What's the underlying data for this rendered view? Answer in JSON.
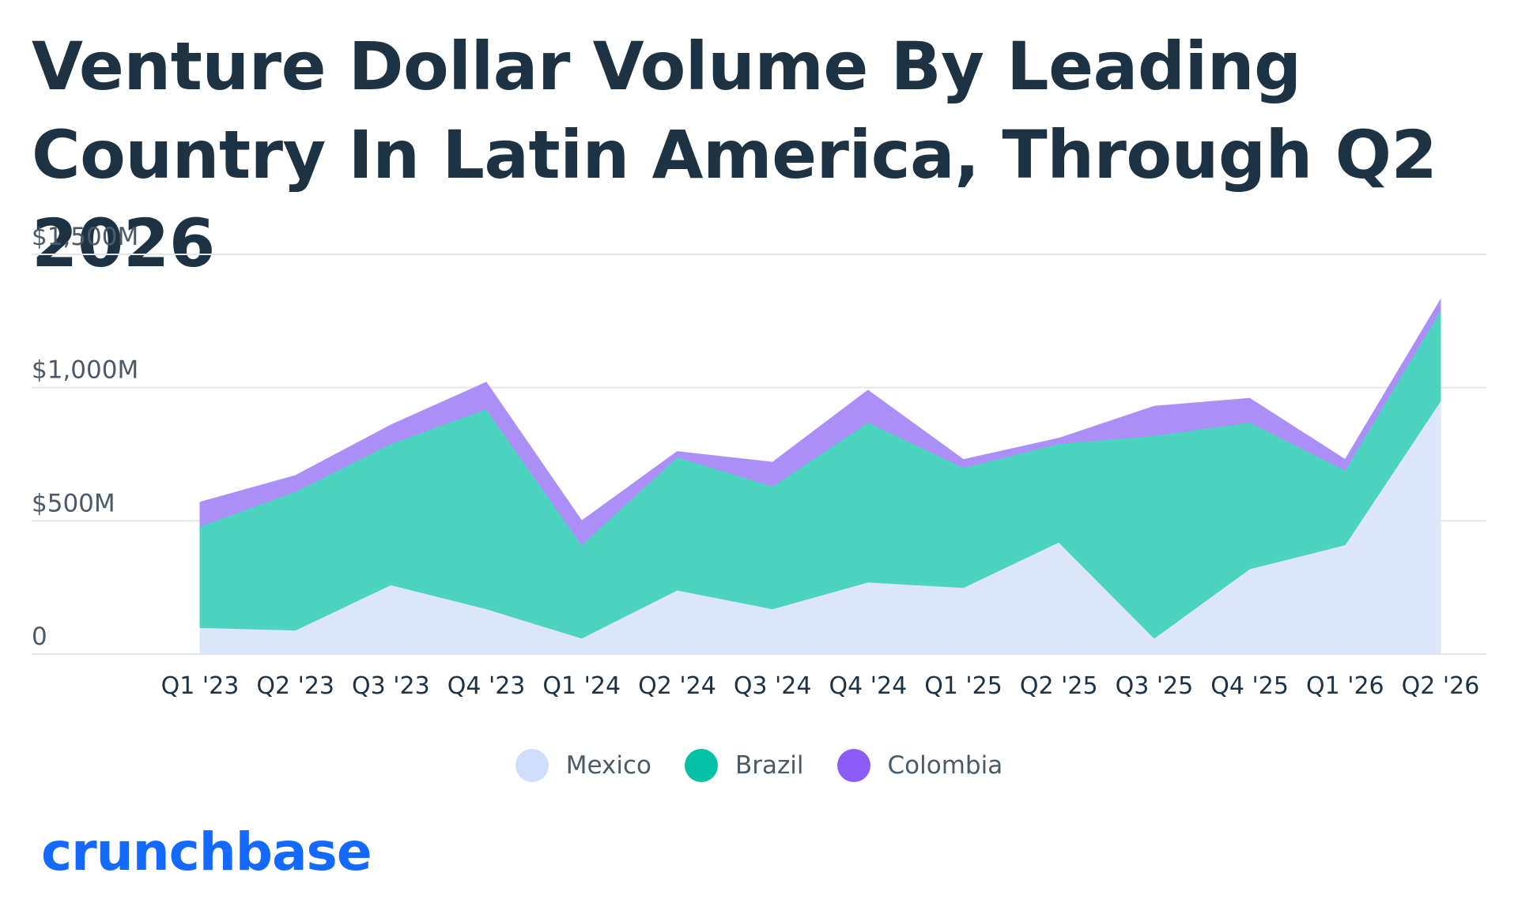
{
  "title": "Venture Dollar Volume By Leading Country In Latin America, Through Q2 2026",
  "logo": "crunchbase",
  "colors": {
    "mexico": "#dce6fb",
    "brazil": "#4dd4c0",
    "colombia": "#ab8ff7",
    "legend_mexico": "#cfdcfb",
    "legend_brazil": "#05c1a5",
    "legend_colombia": "#8b5cf6",
    "grid": "#e3e6e9",
    "text": "#1d3344",
    "logo": "#146aff"
  },
  "legend": [
    {
      "name": "Mexico",
      "color_key": "legend_mexico"
    },
    {
      "name": "Brazil",
      "color_key": "legend_brazil"
    },
    {
      "name": "Colombia",
      "color_key": "legend_colombia"
    }
  ],
  "chart_data": {
    "type": "area",
    "stacked": true,
    "title": "Venture Dollar Volume By Leading Country In Latin America, Through Q2 2026",
    "categories": [
      "Q1 '23",
      "Q2 '23",
      "Q3 '23",
      "Q4 '23",
      "Q1 '24",
      "Q2 '24",
      "Q3 '24",
      "Q4 '24",
      "Q1 '25",
      "Q2 '25",
      "Q3 '25",
      "Q4 '25",
      "Q1 '26",
      "Q2 '26"
    ],
    "series": [
      {
        "name": "Mexico",
        "values": [
          100,
          90,
          260,
          170,
          60,
          240,
          170,
          270,
          250,
          420,
          60,
          320,
          410,
          950
        ]
      },
      {
        "name": "Brazil",
        "values": [
          380,
          520,
          530,
          750,
          350,
          500,
          460,
          600,
          450,
          370,
          760,
          550,
          280,
          340
        ]
      },
      {
        "name": "Colombia",
        "values": [
          90,
          60,
          70,
          100,
          90,
          20,
          90,
          120,
          30,
          20,
          110,
          90,
          40,
          40
        ]
      }
    ],
    "y_ticks": [
      {
        "value": 0,
        "label": "0"
      },
      {
        "value": 500,
        "label": "$500M"
      },
      {
        "value": 1000,
        "label": "$1,000M"
      },
      {
        "value": 1500,
        "label": "$1,500M"
      }
    ],
    "ylim": [
      0,
      1500
    ],
    "grid": true,
    "legend_position": "bottom-center",
    "xlabel": "",
    "ylabel": ""
  }
}
